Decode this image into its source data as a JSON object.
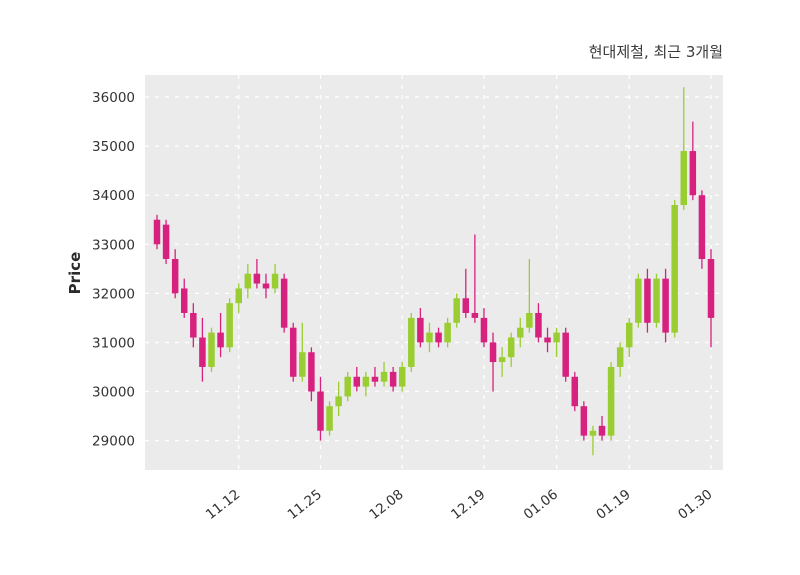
{
  "title": "현대제철, 최근 3개월",
  "chart_data": {
    "type": "candlestick",
    "title": "현대제철, 최근 3개월",
    "ylabel": "Price",
    "xlabel": "",
    "ylim": [
      28400,
      36450
    ],
    "yticks": [
      29000,
      30000,
      31000,
      32000,
      33000,
      34000,
      35000,
      36000
    ],
    "xticks": [
      {
        "index": 9,
        "label": "11.12"
      },
      {
        "index": 18,
        "label": "11.25"
      },
      {
        "index": 27,
        "label": "12.08"
      },
      {
        "index": 36,
        "label": "12.19"
      },
      {
        "index": 44,
        "label": "01.06"
      },
      {
        "index": 52,
        "label": "01.19"
      },
      {
        "index": 61,
        "label": "01.30"
      }
    ],
    "up_color": "#9acd32",
    "down_color": "#d6217f",
    "plot_bg": "#ebebeb",
    "grid_color": "#ffffff",
    "grid_style": "dashed",
    "legend": "none",
    "candles_format": "[open, high, low, close]",
    "candles": [
      [
        33500,
        33600,
        32900,
        33000
      ],
      [
        33400,
        33500,
        32600,
        32700
      ],
      [
        32700,
        32900,
        31900,
        32000
      ],
      [
        32100,
        32300,
        31500,
        31600
      ],
      [
        31600,
        31800,
        30900,
        31100
      ],
      [
        31100,
        31500,
        30200,
        30500
      ],
      [
        30500,
        31300,
        30400,
        31200
      ],
      [
        31200,
        31600,
        30700,
        30900
      ],
      [
        30900,
        31900,
        30800,
        31800
      ],
      [
        31800,
        32200,
        31600,
        32100
      ],
      [
        32100,
        32600,
        31900,
        32400
      ],
      [
        32400,
        32700,
        32100,
        32200
      ],
      [
        32200,
        32400,
        31900,
        32100
      ],
      [
        32100,
        32600,
        32000,
        32400
      ],
      [
        32300,
        32400,
        31200,
        31300
      ],
      [
        31300,
        31400,
        30200,
        30300
      ],
      [
        30300,
        31400,
        30200,
        30800
      ],
      [
        30800,
        30900,
        29800,
        30000
      ],
      [
        30000,
        30300,
        29000,
        29200
      ],
      [
        29200,
        29800,
        29100,
        29700
      ],
      [
        29700,
        30200,
        29500,
        29900
      ],
      [
        29900,
        30400,
        29800,
        30300
      ],
      [
        30300,
        30500,
        30000,
        30100
      ],
      [
        30100,
        30400,
        29900,
        30300
      ],
      [
        30300,
        30500,
        30100,
        30200
      ],
      [
        30200,
        30600,
        30100,
        30400
      ],
      [
        30400,
        30500,
        30000,
        30100
      ],
      [
        30100,
        30600,
        30000,
        30500
      ],
      [
        30500,
        31600,
        30400,
        31500
      ],
      [
        31500,
        31700,
        30900,
        31000
      ],
      [
        31000,
        31400,
        30800,
        31200
      ],
      [
        31200,
        31300,
        30900,
        31000
      ],
      [
        31000,
        31500,
        30900,
        31400
      ],
      [
        31400,
        32000,
        31300,
        31900
      ],
      [
        31900,
        32500,
        31500,
        31600
      ],
      [
        31600,
        33200,
        31400,
        31500
      ],
      [
        31500,
        31700,
        30900,
        31000
      ],
      [
        31000,
        31200,
        30000,
        30600
      ],
      [
        30600,
        30900,
        30300,
        30700
      ],
      [
        30700,
        31200,
        30500,
        31100
      ],
      [
        31100,
        31500,
        30900,
        31300
      ],
      [
        31300,
        32700,
        31200,
        31600
      ],
      [
        31600,
        31800,
        31000,
        31100
      ],
      [
        31100,
        31300,
        30800,
        31000
      ],
      [
        31000,
        31300,
        30700,
        31200
      ],
      [
        31200,
        31300,
        30200,
        30300
      ],
      [
        30300,
        30400,
        29600,
        29700
      ],
      [
        29700,
        29800,
        29000,
        29100
      ],
      [
        29100,
        29300,
        28700,
        29200
      ],
      [
        29300,
        29500,
        29000,
        29100
      ],
      [
        29100,
        30600,
        29000,
        30500
      ],
      [
        30500,
        31000,
        30300,
        30900
      ],
      [
        30900,
        31500,
        30700,
        31400
      ],
      [
        31400,
        32400,
        31300,
        32300
      ],
      [
        32300,
        32500,
        31200,
        31400
      ],
      [
        31400,
        32400,
        31300,
        32300
      ],
      [
        32300,
        32500,
        31000,
        31200
      ],
      [
        31200,
        33900,
        31100,
        33800
      ],
      [
        33800,
        36200,
        33700,
        34900
      ],
      [
        34900,
        35500,
        33900,
        34000
      ],
      [
        34000,
        34100,
        32500,
        32700
      ],
      [
        32700,
        32900,
        30900,
        31500
      ]
    ]
  }
}
